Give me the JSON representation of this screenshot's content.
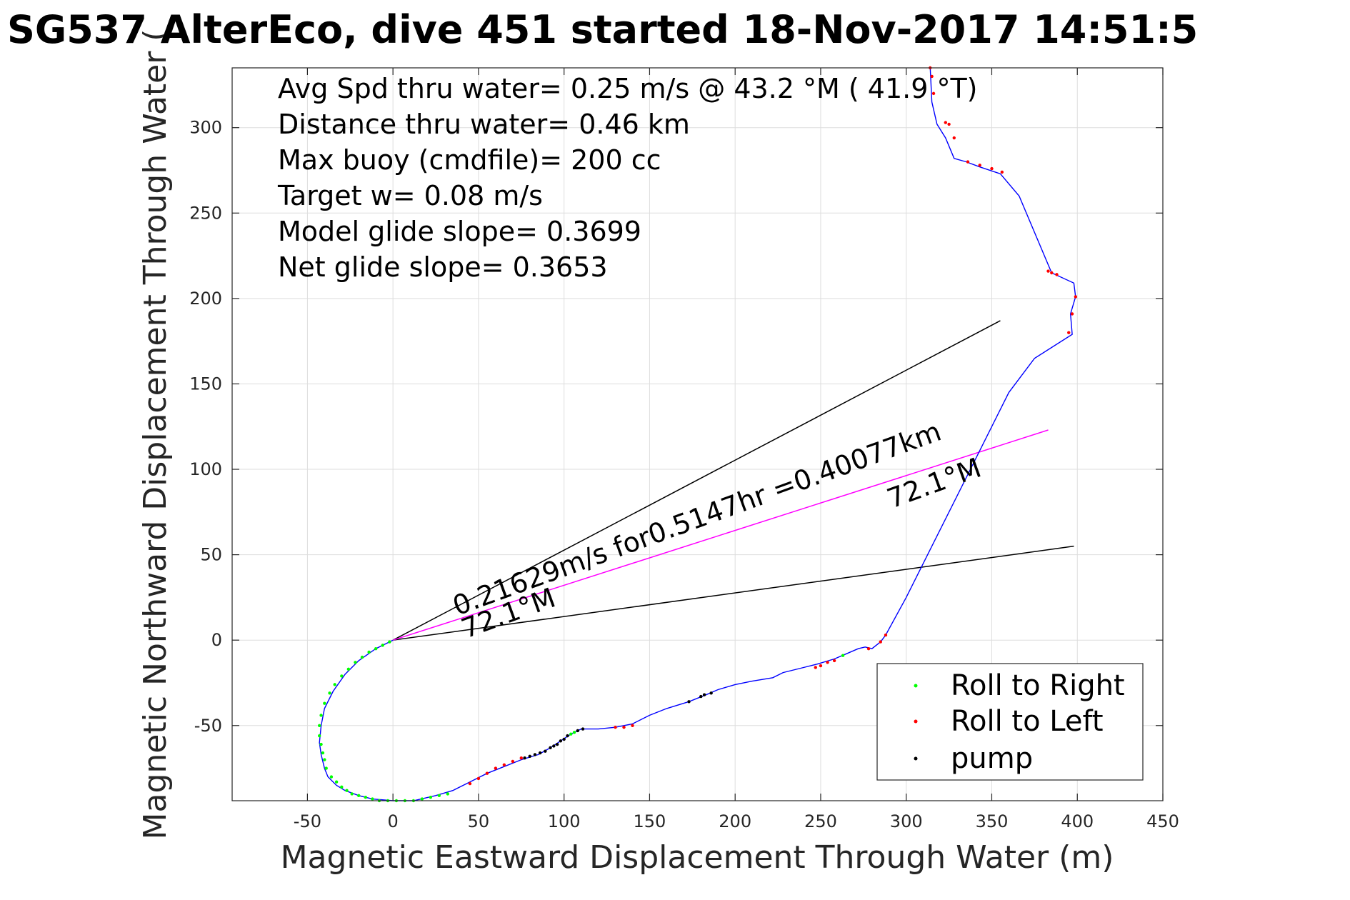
{
  "chart_data": {
    "type": "line",
    "title": "SG537 AlterEco, dive 451 started 18-Nov-2017 14:51:5",
    "xlabel": "Magnetic Eastward Displacement Through Water (m)",
    "ylabel": "Magnetic Northward Displacement Through Water (",
    "xlim": [
      -94,
      450
    ],
    "ylim": [
      -94,
      335
    ],
    "xticks": [
      -50,
      0,
      50,
      100,
      150,
      200,
      250,
      300,
      350,
      400,
      450
    ],
    "yticks": [
      -50,
      0,
      50,
      100,
      150,
      200,
      250,
      300
    ],
    "xtick_labels": [
      "-50",
      "0",
      "50",
      "100",
      "150",
      "200",
      "250",
      "300",
      "350",
      "400",
      "450"
    ],
    "ytick_labels": [
      "-50",
      "0",
      "50",
      "100",
      "150",
      "200",
      "250",
      "300"
    ],
    "grid": true,
    "legend_position": "bottom-right",
    "annotations": [
      "Avg Spd thru water=  0.25 m/s @  43.2 °M ( 41.9 °T)",
      "Distance thru water=  0.46 km",
      "Max buoy (cmdfile)= 200 cc",
      "Target w= 0.08 m/s",
      "Model glide slope= 0.3699",
      "Net glide slope= 0.3653"
    ],
    "dive_label": "0.21629m/s for0.5147hr =0.40077km",
    "heading_labels": [
      "72.1°M",
      "72.1°M"
    ],
    "track": {
      "name": "track",
      "color": "#0000ff",
      "x": [
        0,
        -10,
        -20,
        -28,
        -35,
        -40,
        -42,
        -43,
        -42,
        -40,
        -38,
        -33,
        -28,
        -20,
        -12,
        0,
        12,
        25,
        35,
        45,
        55,
        65,
        75,
        85,
        92,
        98,
        104,
        110,
        120,
        130,
        140,
        150,
        160,
        173,
        183,
        190,
        200,
        210,
        222,
        228,
        240,
        248,
        258,
        265,
        272,
        276,
        280,
        285,
        288,
        300,
        315,
        330,
        345,
        360,
        375,
        397,
        396,
        399,
        398,
        385,
        366,
        355,
        343,
        335,
        328,
        323,
        318,
        315,
        314
      ],
      "y": [
        0,
        -5,
        -12,
        -20,
        -30,
        -40,
        -50,
        -60,
        -67,
        -75,
        -80,
        -85,
        -88,
        -91,
        -93,
        -94,
        -94,
        -91,
        -88,
        -83,
        -78,
        -74,
        -70,
        -67,
        -63,
        -59,
        -55,
        -52,
        -52,
        -51,
        -49,
        -44,
        -40,
        -36,
        -32,
        -29,
        -26,
        -24,
        -22,
        -19,
        -16,
        -14,
        -11,
        -8,
        -5,
        -4,
        -5,
        -1,
        3,
        25,
        55,
        85,
        115,
        145,
        165,
        179,
        191,
        201,
        209,
        215,
        260,
        273,
        277,
        280,
        282,
        294,
        302,
        315,
        335
      ]
    },
    "course_line": {
      "name": "course",
      "color": "#ff00ff",
      "x": [
        0,
        383
      ],
      "y": [
        0,
        123
      ]
    },
    "envelope_lines": [
      {
        "color": "#000000",
        "x": [
          0,
          355
        ],
        "y": [
          0,
          187
        ]
      },
      {
        "color": "#000000",
        "x": [
          0,
          398
        ],
        "y": [
          0,
          55
        ]
      }
    ],
    "series": [
      {
        "name": "Roll to Right",
        "color": "#00ff00",
        "x": [
          -2,
          -6,
          -10,
          -14,
          -18,
          -22,
          -26,
          -30,
          -34,
          -37,
          -40,
          -42,
          -43,
          -43,
          -42,
          -41,
          -40,
          -39,
          -36,
          -33,
          -30,
          -27,
          -24,
          -20,
          -16,
          -12,
          -8,
          -3,
          2,
          7,
          12,
          17,
          22,
          27,
          32,
          104,
          106,
          263
        ],
        "y": [
          -1,
          -3,
          -5,
          -7,
          -10,
          -13,
          -17,
          -21,
          -26,
          -31,
          -37,
          -44,
          -50,
          -56,
          -61,
          -66,
          -70,
          -75,
          -80,
          -83,
          -86,
          -88,
          -90,
          -91,
          -92,
          -93,
          -94,
          -94,
          -94,
          -94,
          -94,
          -93,
          -92,
          -91,
          -90,
          -55,
          -54,
          -9
        ]
      },
      {
        "name": "Roll to Left",
        "color": "#ff0000",
        "x": [
          45,
          50,
          55,
          60,
          65,
          70,
          75,
          130,
          135,
          140,
          247,
          250,
          254,
          258,
          278,
          285,
          288,
          395,
          399,
          397,
          383,
          385,
          388,
          356,
          350,
          343,
          336,
          328,
          325,
          323,
          316,
          315,
          314
        ],
        "y": [
          -84,
          -81,
          -78,
          -75,
          -73,
          -71,
          -69,
          -51,
          -51,
          -50,
          -16,
          -15,
          -13,
          -12,
          -5,
          -1,
          3,
          180,
          201,
          191,
          216,
          215,
          214,
          274,
          276,
          278,
          280,
          294,
          302,
          303,
          320,
          330,
          335
        ]
      },
      {
        "name": "pump",
        "color": "#000000",
        "x": [
          77,
          80,
          83,
          86,
          89,
          92,
          94,
          96,
          98,
          100,
          102,
          108,
          111,
          173,
          180,
          182,
          186
        ],
        "y": [
          -69,
          -68,
          -67,
          -66,
          -65,
          -63,
          -62,
          -61,
          -59,
          -58,
          -56,
          -53,
          -52,
          -36,
          -33,
          -32,
          -31
        ]
      }
    ]
  }
}
